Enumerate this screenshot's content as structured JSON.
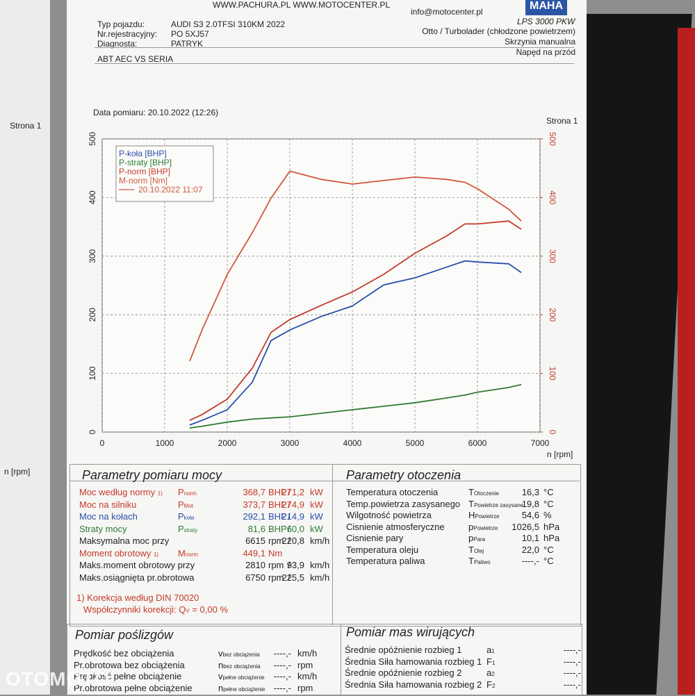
{
  "header": {
    "links": "WWW.PACHURA.PL   WWW.MOTOCENTER.PL",
    "email": "info@motocenter.pl",
    "logo": "MAHA",
    "model": "LPS 3000 PKW",
    "fields": [
      {
        "label": "Typ pojazdu:",
        "value": "AUDI S3 2.0TFSI 310KM 2022"
      },
      {
        "label": "Nr.rejestracyjny:",
        "value": "PO 5XJ57"
      },
      {
        "label": "Diagnosta:",
        "value": "PATRYK"
      }
    ],
    "right_lines": [
      "Otto / Turbolader (chłodzone powietrzem)",
      "Skrzynia manualna",
      "Napęd na przód"
    ],
    "note": "ABT AEC VS SERIA",
    "date": "Data pomiaru: 20.10.2022 (12:26)",
    "page": "Strona 1"
  },
  "left_page": {
    "page": "Strona 1",
    "axis": "n [rpm]"
  },
  "chart_data": {
    "type": "line",
    "x_label": "n [rpm]",
    "x": [
      1400,
      1600,
      2000,
      2400,
      2700,
      3000,
      3500,
      4000,
      4500,
      5000,
      5500,
      5800,
      6000,
      6500,
      6700
    ],
    "series": [
      {
        "name": "P-koła [BHP]",
        "color": "#2a4fa8",
        "values": [
          12,
          20,
          38,
          85,
          156,
          174,
          197,
          215,
          251,
          263,
          281,
          292,
          290,
          287,
          272
        ]
      },
      {
        "name": "P-straty [BHP]",
        "color": "#2f7a35",
        "values": [
          7,
          10,
          17,
          22,
          24,
          26,
          32,
          38,
          44,
          50,
          58,
          63,
          68,
          76,
          81
        ]
      },
      {
        "name": "P-norm [BHP]",
        "color": "#c43a2a",
        "values": [
          20,
          30,
          56,
          109,
          170,
          192,
          216,
          239,
          269,
          305,
          334,
          355,
          355,
          360,
          346
        ]
      },
      {
        "name": "M-norm [Nm]",
        "color": "#d0583a",
        "axis": "y2",
        "values": [
          121,
          175,
          269,
          340,
          399,
          445,
          431,
          423,
          429,
          435,
          431,
          426,
          415,
          380,
          360
        ]
      }
    ],
    "legend_note": "20.10.2022 11:07",
    "xlim": [
      0,
      7000
    ],
    "xticks": [
      0,
      1000,
      2000,
      3000,
      4000,
      5000,
      6000,
      7000
    ],
    "ylim": [
      0,
      500
    ],
    "yticks": [
      0,
      100,
      200,
      300,
      400,
      500
    ],
    "y2lim": [
      0,
      500
    ],
    "y2ticks": [
      0,
      100,
      200,
      300,
      400,
      500
    ],
    "y2color": "#c43a2a",
    "grid": true
  },
  "power": {
    "title": "Parametry pomiaru mocy",
    "rows": [
      {
        "label": "Moc według normy",
        "note": "1)",
        "sym": "P",
        "sub": "norm",
        "v1": "368,7",
        "u1": "BHP",
        "sep": "/",
        "v2": "271,2",
        "u2": "kW",
        "color": "#c43a2a"
      },
      {
        "label": "Moc na silniku",
        "sym": "P",
        "sub": "Mot",
        "v1": "373,7",
        "u1": "BHP",
        "sep": "/",
        "v2": "274,9",
        "u2": "kW",
        "color": "#c43a2a"
      },
      {
        "label": "Moc na kołach",
        "sym": "P",
        "sub": "koła",
        "v1": "292,1",
        "u1": "BHP",
        "sep": "/",
        "v2": "214,9",
        "u2": "kW",
        "color": "#2a4fa8"
      },
      {
        "label": "Straty mocy",
        "sym": "P",
        "sub": "straty",
        "v1": "81,6",
        "u1": "BHP",
        "sep": "/",
        "v2": "60,0",
        "u2": "kW",
        "color": "#2f7a35"
      },
      {
        "label": "Maksymalna moc przy",
        "v1": "6615",
        "u1": "rpm",
        "sep": "/",
        "v2": "220,8",
        "u2": "km/h",
        "color": "#222"
      },
      {
        "label": "Moment obrotowy",
        "note": "1)",
        "sym": "M",
        "sub": "norm",
        "v1": "449,1",
        "u1": "Nm",
        "color": "#c43a2a"
      },
      {
        "label": "Maks.moment obrotowy przy",
        "v1": "2810",
        "u1": "rpm",
        "sep": "/",
        "v2": "93,9",
        "u2": "km/h",
        "color": "#222"
      },
      {
        "label": "Maks.osiągnięta pr.obrotowa",
        "v1": "6750",
        "u1": "rpm",
        "sep": "/",
        "v2": "225,5",
        "u2": "km/h",
        "color": "#222"
      }
    ],
    "footnote": "1) Korekcja według DIN 70020",
    "factor_label": "Współczynniki korekcji: Q",
    "factor_sub": "V",
    "factor_value": "= 0,00 %"
  },
  "environment": {
    "title": "Parametry otoczenia",
    "rows": [
      {
        "label": "Temperatura otoczenia",
        "sym": "T",
        "sub": "Otoczenie",
        "v1": "16,3",
        "u1": "°C"
      },
      {
        "label": "Temp.powietrza zasysanego",
        "sym": "T",
        "sub": "Powietrze zasysane",
        "v1": "19,8",
        "u1": "°C"
      },
      {
        "label": "Wilgotność powietrza",
        "sym": "H",
        "sub": "Powietrze",
        "v1": "54,6",
        "u1": "%"
      },
      {
        "label": "Cisnienie atmosferyczne",
        "sym": "p",
        "sub": "Powietrze",
        "v1": "1026,5",
        "u1": "hPa"
      },
      {
        "label": "Cisnienie pary",
        "sym": "p",
        "sub": "Para",
        "v1": "10,1",
        "u1": "hPa"
      },
      {
        "label": "Temperatura oleju",
        "sym": "T",
        "sub": "Olej",
        "v1": "22,0",
        "u1": "°C"
      },
      {
        "label": "Temperatura paliwa",
        "sym": "T",
        "sub": "Paliwo",
        "v1": "----,-",
        "u1": "°C"
      }
    ]
  },
  "slip": {
    "title": "Pomiar poślizgów",
    "rows": [
      {
        "label": "Prędkość bez obciążenia",
        "sym": "v",
        "sub": "bez obciążenia",
        "v1": "----,-",
        "u1": "km/h"
      },
      {
        "label": "Pr.obrotowa bez obciążenia",
        "sym": "n",
        "sub": "bez obciążenia",
        "v1": "----,-",
        "u1": "rpm"
      },
      {
        "label": "Prędkość pełne obciążenie",
        "sym": "v",
        "sub": "pełne obciążenie",
        "v1": "----,-",
        "u1": "km/h"
      },
      {
        "label": "Pr.obrotowa pełne obciążenie",
        "sym": "n",
        "sub": "pełne obciążenie",
        "v1": "----,-",
        "u1": "rpm"
      }
    ]
  },
  "masses": {
    "title": "Pomiar mas wirujących",
    "rows": [
      {
        "label": "Średnie opóźnienie rozbieg 1",
        "sym": "a",
        "sub": "1",
        "v1": "----,-"
      },
      {
        "label": "Średnia Siła hamowania rozbieg 1",
        "sym": "F",
        "sub": "1",
        "v1": "----,-"
      },
      {
        "label": "Średnie opóźnienie rozbieg 2",
        "sym": "a",
        "sub": "2",
        "v1": "----,-"
      },
      {
        "label": "Średnia Siła hamowania rozbieg 2",
        "sym": "F",
        "sub": "2",
        "v1": "----,-"
      }
    ]
  },
  "watermark": "OTOMOTO"
}
